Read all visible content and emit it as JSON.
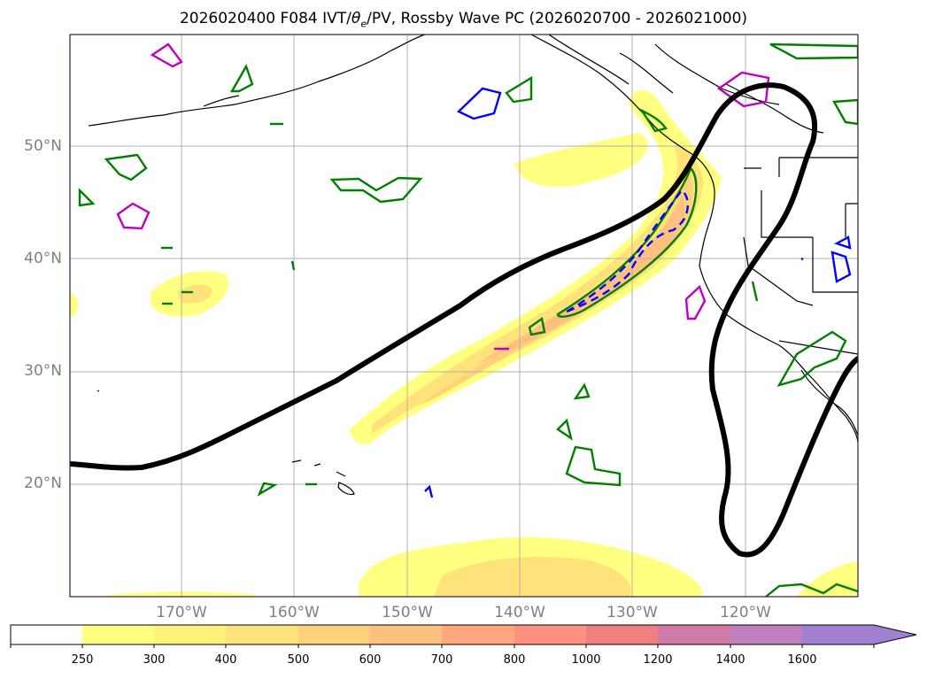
{
  "title": {
    "run": "2026020400",
    "lead": "F084",
    "fields": "IVT/θe/PV,",
    "fields_prefix": "IVT/",
    "theta": "θ",
    "theta_sub": "e",
    "fields_suffix": "/PV,",
    "product": "Rossby Wave PC (2026020700 - 2026021000)"
  },
  "map": {
    "region": "North Pacific",
    "lat_labels": [
      "50°N",
      "40°N",
      "30°N",
      "20°N"
    ],
    "lon_labels": [
      "170°W",
      "160°W",
      "150°W",
      "140°W",
      "130°W",
      "120°W"
    ],
    "gridlines": true,
    "colors": {
      "rossby_wave_pc": "#000000",
      "theta_e": "#008000",
      "pv_positive": "#0000ff",
      "pv_other": "#c000c0",
      "coastline": "#000000"
    }
  },
  "colorbar": {
    "extend": "max",
    "ticks": [
      "250",
      "300",
      "400",
      "500",
      "600",
      "700",
      "800",
      "1000",
      "1200",
      "1400",
      "1600"
    ],
    "colors": [
      "#ffffff",
      "#ffff80",
      "#fff27a",
      "#ffe27a",
      "#ffd27a",
      "#ffc080",
      "#ffa880",
      "#ff9080",
      "#f08080",
      "#d07aa8",
      "#c080c0",
      "#a080d0"
    ]
  }
}
